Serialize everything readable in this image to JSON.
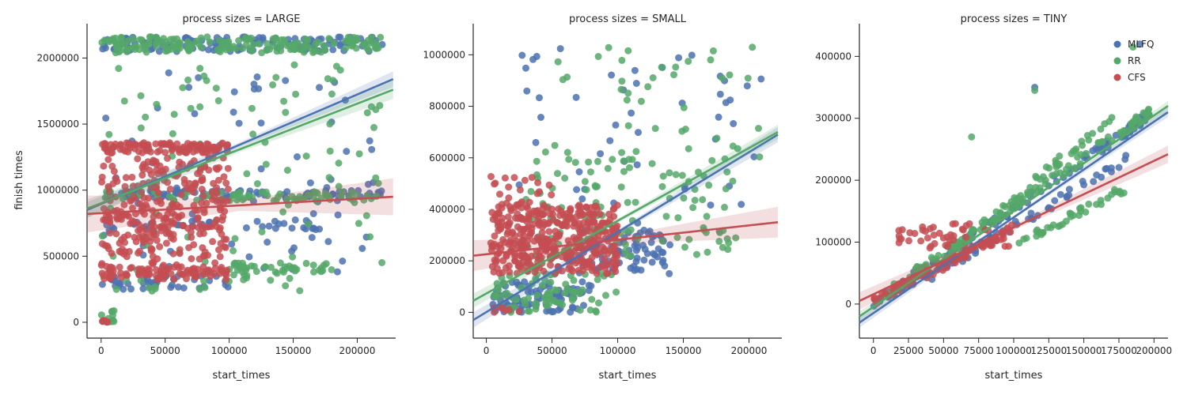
{
  "chart_data": {
    "type": "scatter",
    "ylabel": "finish times",
    "legend": {
      "placement": "top-right of TINY panel",
      "entries": [
        "MLFQ",
        "RR",
        "CFS"
      ]
    },
    "colors": {
      "MLFQ": "#4c72b0",
      "RR": "#55a868",
      "CFS": "#c44e52"
    },
    "panels": [
      {
        "title": "process sizes = LARGE",
        "xlabel": "start_times",
        "xlim": [
          -11000,
          230000
        ],
        "ylim": [
          -120000,
          2200000
        ],
        "xticks": [
          0,
          50000,
          100000,
          150000,
          200000
        ],
        "yticks": [
          0,
          500000,
          1000000,
          1500000,
          2000000
        ],
        "series": [
          {
            "name": "MLFQ",
            "clusters": [
              {
                "x": [
                  0,
                  220000
                ],
                "y": [
                  2050000,
                  2160000
                ],
                "n": 140
              },
              {
                "x": [
                  0,
                  220000
                ],
                "y": [
                  940000,
                  1000000
                ],
                "n": 90
              },
              {
                "x": [
                  0,
                  170000
                ],
                "y": [
                  700000,
                  780000
                ],
                "n": 40
              },
              {
                "x": [
                  0,
                  100000
                ],
                "y": [
                  250000,
                  350000
                ],
                "n": 40
              },
              {
                "x": [
                  0,
                  220000
                ],
                "y": [
                  300000,
                  1900000
                ],
                "n": 70
              }
            ],
            "regression": {
              "x": [
                -11000,
                228000
              ],
              "y": [
                850000,
                1840000
              ],
              "band": 60000
            }
          },
          {
            "name": "RR",
            "clusters": [
              {
                "x": [
                  0,
                  220000
                ],
                "y": [
                  2040000,
                  2160000
                ],
                "n": 170
              },
              {
                "x": [
                  0,
                  220000
                ],
                "y": [
                  920000,
                  990000
                ],
                "n": 70
              },
              {
                "x": [
                  100000,
                  180000
                ],
                "y": [
                  380000,
                  450000
                ],
                "n": 40
              },
              {
                "x": [
                  0,
                  220000
                ],
                "y": [
                  200000,
                  1950000
                ],
                "n": 110
              },
              {
                "x": [
                  0,
                  10000
                ],
                "y": [
                  0,
                  100000
                ],
                "n": 12
              }
            ],
            "regression": {
              "x": [
                -11000,
                228000
              ],
              "y": [
                860000,
                1760000
              ],
              "band": 70000
            }
          },
          {
            "name": "CFS",
            "clusters": [
              {
                "x": [
                  0,
                  100000
                ],
                "y": [
                  1280000,
                  1360000
                ],
                "n": 110
              },
              {
                "x": [
                  0,
                  100000
                ],
                "y": [
                  320000,
                  1250000
                ],
                "n": 330
              },
              {
                "x": [
                  0,
                  100000
                ],
                "y": [
                  350000,
                  420000
                ],
                "n": 60
              },
              {
                "x": [
                  0,
                  5000
                ],
                "y": [
                  0,
                  20000
                ],
                "n": 6
              }
            ],
            "regression": {
              "x": [
                -11000,
                228000
              ],
              "y": [
                820000,
                950000
              ],
              "band": 140000
            }
          }
        ]
      },
      {
        "title": "process sizes = SMALL",
        "xlabel": "start_times",
        "xlim": [
          -10000,
          225000
        ],
        "ylim": [
          -100000,
          1090000
        ],
        "xticks": [
          0,
          50000,
          100000,
          150000,
          200000
        ],
        "yticks": [
          0,
          200000,
          400000,
          600000,
          800000,
          1000000
        ],
        "series": [
          {
            "name": "MLFQ",
            "clusters": [
              {
                "x": [
                  5000,
                  80000
                ],
                "y": [
                  0,
                  120000
                ],
                "n": 90
              },
              {
                "x": [
                  70000,
                  140000
                ],
                "y": [
                  150000,
                  320000
                ],
                "n": 80
              },
              {
                "x": [
                  20000,
                  210000
                ],
                "y": [
                  300000,
                  1040000
                ],
                "n": 50
              }
            ],
            "regression": {
              "x": [
                -10000,
                222000
              ],
              "y": [
                -30000,
                690000
              ],
              "band": 30000
            }
          },
          {
            "name": "RR",
            "clusters": [
              {
                "x": [
                  5000,
                  100000
                ],
                "y": [
                  0,
                  150000
                ],
                "n": 80
              },
              {
                "x": [
                  30000,
                  190000
                ],
                "y": [
                  200000,
                  600000
                ],
                "n": 110
              },
              {
                "x": [
                  30000,
                  210000
                ],
                "y": [
                  600000,
                  1030000
                ],
                "n": 40
              }
            ],
            "regression": {
              "x": [
                -10000,
                222000
              ],
              "y": [
                45000,
                700000
              ],
              "band": 28000
            }
          },
          {
            "name": "CFS",
            "clusters": [
              {
                "x": [
                  3000,
                  100000
                ],
                "y": [
                  150000,
                  420000
                ],
                "n": 420
              },
              {
                "x": [
                  3000,
                  50000
                ],
                "y": [
                  420000,
                  540000
                ],
                "n": 20
              },
              {
                "x": [
                  3000,
                  30000
                ],
                "y": [
                  0,
                  30000
                ],
                "n": 10
              }
            ],
            "regression": {
              "x": [
                -10000,
                222000
              ],
              "y": [
                220000,
                350000
              ],
              "band": 60000
            }
          }
        ]
      },
      {
        "title": "process sizes = TINY",
        "xlabel": "start_times",
        "xlim": [
          -10000,
          210000
        ],
        "ylim": [
          -55000,
          440000
        ],
        "xticks": [
          0,
          25000,
          50000,
          75000,
          100000,
          125000,
          150000,
          175000,
          200000
        ],
        "yticks": [
          0,
          100000,
          200000,
          300000,
          400000
        ],
        "series": [
          {
            "name": "MLFQ",
            "lines": [
              {
                "x": [
                  0,
                  200000
                ],
                "slope": 1.55,
                "offset": 0,
                "n": 110
              },
              {
                "x": [
                  40000,
                  180000
                ],
                "slope": 1.35,
                "offset": -10000,
                "n": 60
              }
            ],
            "extra": [
              {
                "x": 115000,
                "y": 350000
              },
              {
                "x": 190000,
                "y": 420000
              }
            ],
            "regression": {
              "x": [
                -10000,
                210000
              ],
              "y": [
                -30000,
                310000
              ],
              "band": 8000
            }
          },
          {
            "name": "RR",
            "lines": [
              {
                "x": [
                  0,
                  200000
                ],
                "slope": 1.55,
                "offset": 5000,
                "n": 110
              },
              {
                "x": [
                  35000,
                  170000
                ],
                "slope": 1.9,
                "offset": -20000,
                "n": 50
              },
              {
                "x": [
                  100000,
                  180000
                ],
                "slope": 1.15,
                "offset": -20000,
                "n": 40
              }
            ],
            "extra": [
              {
                "x": 70000,
                "y": 270000
              },
              {
                "x": 115000,
                "y": 345000
              },
              {
                "x": 185000,
                "y": 415000
              }
            ],
            "regression": {
              "x": [
                -10000,
                210000
              ],
              "y": [
                -20000,
                320000
              ],
              "band": 8000
            }
          },
          {
            "name": "CFS",
            "lines": [
              {
                "x": [
                  0,
                  100000
                ],
                "slope": 1.15,
                "offset": 5000,
                "n": 80
              }
            ],
            "clusters": [
              {
                "x": [
                  15000,
                  100000
                ],
                "y": [
                  90000,
                  130000
                ],
                "n": 50
              }
            ],
            "regression": {
              "x": [
                -10000,
                210000
              ],
              "y": [
                5000,
                242000
              ],
              "band": 14000
            }
          }
        ]
      }
    ]
  }
}
